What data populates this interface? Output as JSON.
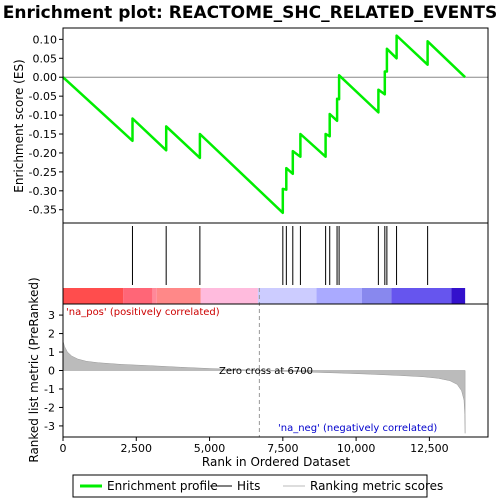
{
  "chart_data": {
    "type": "line",
    "title": "Enrichment plot: REACTOME_SHC_RELATED_EVENTS",
    "x_label": "Rank in Ordered Dataset",
    "x_range": [
      0,
      14500
    ],
    "x_ticks": [
      0,
      2500,
      5000,
      7500,
      10000,
      12500
    ],
    "x_tick_labels": [
      "0",
      "2,500",
      "5,000",
      "7,500",
      "10,000",
      "12,500"
    ],
    "es_panel": {
      "ylabel": "Enrichment score (ES)",
      "ylim": [
        -0.385,
        0.13
      ],
      "y_ticks": [
        -0.35,
        -0.3,
        -0.25,
        -0.2,
        -0.15,
        -0.1,
        -0.05,
        0.0,
        0.05,
        0.1
      ],
      "y_tick_labels": [
        "-0.35",
        "-0.30",
        "-0.25",
        "-0.20",
        "-0.15",
        "-0.10",
        "-0.05",
        "0.00",
        "0.05",
        "0.10"
      ],
      "series_name": "Enrichment profile",
      "color": "#00ee00",
      "points": [
        [
          0,
          0.0
        ],
        [
          2370,
          -0.168
        ],
        [
          2370,
          -0.109
        ],
        [
          3520,
          -0.193
        ],
        [
          3520,
          -0.13
        ],
        [
          4670,
          -0.213
        ],
        [
          4670,
          -0.15
        ],
        [
          7500,
          -0.358
        ],
        [
          7500,
          -0.295
        ],
        [
          7620,
          -0.297
        ],
        [
          7620,
          -0.24
        ],
        [
          7840,
          -0.255
        ],
        [
          7840,
          -0.195
        ],
        [
          8100,
          -0.21
        ],
        [
          8100,
          -0.15
        ],
        [
          8960,
          -0.21
        ],
        [
          8960,
          -0.15
        ],
        [
          9100,
          -0.156
        ],
        [
          9100,
          -0.097
        ],
        [
          9350,
          -0.115
        ],
        [
          9350,
          -0.057
        ],
        [
          9420,
          -0.058
        ],
        [
          9420,
          0.005
        ],
        [
          10760,
          -0.093
        ],
        [
          10760,
          -0.033
        ],
        [
          10980,
          -0.045
        ],
        [
          10980,
          0.015
        ],
        [
          11050,
          0.015
        ],
        [
          11050,
          0.075
        ],
        [
          11380,
          0.05
        ],
        [
          11380,
          0.11
        ],
        [
          12440,
          0.033
        ],
        [
          12440,
          0.095
        ],
        [
          13720,
          0.0
        ]
      ]
    },
    "hits": {
      "series_name": "Hits",
      "x": [
        2370,
        3520,
        4670,
        7500,
        7620,
        7840,
        8100,
        8960,
        9100,
        9350,
        9420,
        10760,
        10980,
        11050,
        11380,
        12440
      ]
    },
    "metric_panel": {
      "ylabel": "Ranked list metric (PreRanked)",
      "ylim": [
        -3.6,
        3.6
      ],
      "y_ticks": [
        -3,
        -2,
        -1,
        0,
        1,
        2,
        3
      ],
      "y_tick_labels": [
        "-3",
        "-2",
        "-1",
        "0",
        "1",
        "2",
        "3"
      ],
      "series_name": "Ranking metric scores",
      "color": "#bbbbbb",
      "profile": [
        [
          0,
          1.6
        ],
        [
          50,
          1.3
        ],
        [
          150,
          1.0
        ],
        [
          300,
          0.78
        ],
        [
          500,
          0.62
        ],
        [
          800,
          0.5
        ],
        [
          1200,
          0.42
        ],
        [
          2000,
          0.33
        ],
        [
          3000,
          0.26
        ],
        [
          4000,
          0.18
        ],
        [
          5000,
          0.11
        ],
        [
          6000,
          0.05
        ],
        [
          6700,
          0.0
        ],
        [
          7500,
          -0.04
        ],
        [
          8500,
          -0.09
        ],
        [
          9500,
          -0.14
        ],
        [
          10500,
          -0.2
        ],
        [
          11500,
          -0.27
        ],
        [
          12300,
          -0.34
        ],
        [
          12800,
          -0.42
        ],
        [
          13200,
          -0.55
        ],
        [
          13450,
          -0.75
        ],
        [
          13600,
          -1.1
        ],
        [
          13680,
          -1.6
        ],
        [
          13710,
          -2.4
        ],
        [
          13720,
          -3.4
        ]
      ],
      "zero_cross_x": 6700,
      "zero_cross_label": "Zero cross at 6700",
      "pos_label": "'na_pos' (positively correlated)",
      "neg_label": "'na_neg' (negatively correlated)"
    },
    "colorbar": {
      "segments": [
        {
          "start": 0,
          "end": 2050,
          "color": "#ff4d4d"
        },
        {
          "start": 2050,
          "end": 3050,
          "color": "#ff6677"
        },
        {
          "start": 3050,
          "end": 3200,
          "color": "#ff8899"
        },
        {
          "start": 3200,
          "end": 4700,
          "color": "#ff8888"
        },
        {
          "start": 4700,
          "end": 6650,
          "color": "#ffbbdd"
        },
        {
          "start": 6650,
          "end": 8650,
          "color": "#ccccff"
        },
        {
          "start": 8650,
          "end": 10200,
          "color": "#aaaaff"
        },
        {
          "start": 10200,
          "end": 11200,
          "color": "#8888ee"
        },
        {
          "start": 11200,
          "end": 13250,
          "color": "#6655ee"
        },
        {
          "start": 13250,
          "end": 13720,
          "color": "#3311cc"
        }
      ]
    },
    "x_max_rank": 13720,
    "legend": [
      {
        "label": "Enrichment profile",
        "color": "#00ee00",
        "kind": "thick"
      },
      {
        "label": "Hits",
        "color": "#000000",
        "kind": "line"
      },
      {
        "label": "Ranking metric scores",
        "color": "#bbbbbb",
        "kind": "line"
      }
    ]
  }
}
